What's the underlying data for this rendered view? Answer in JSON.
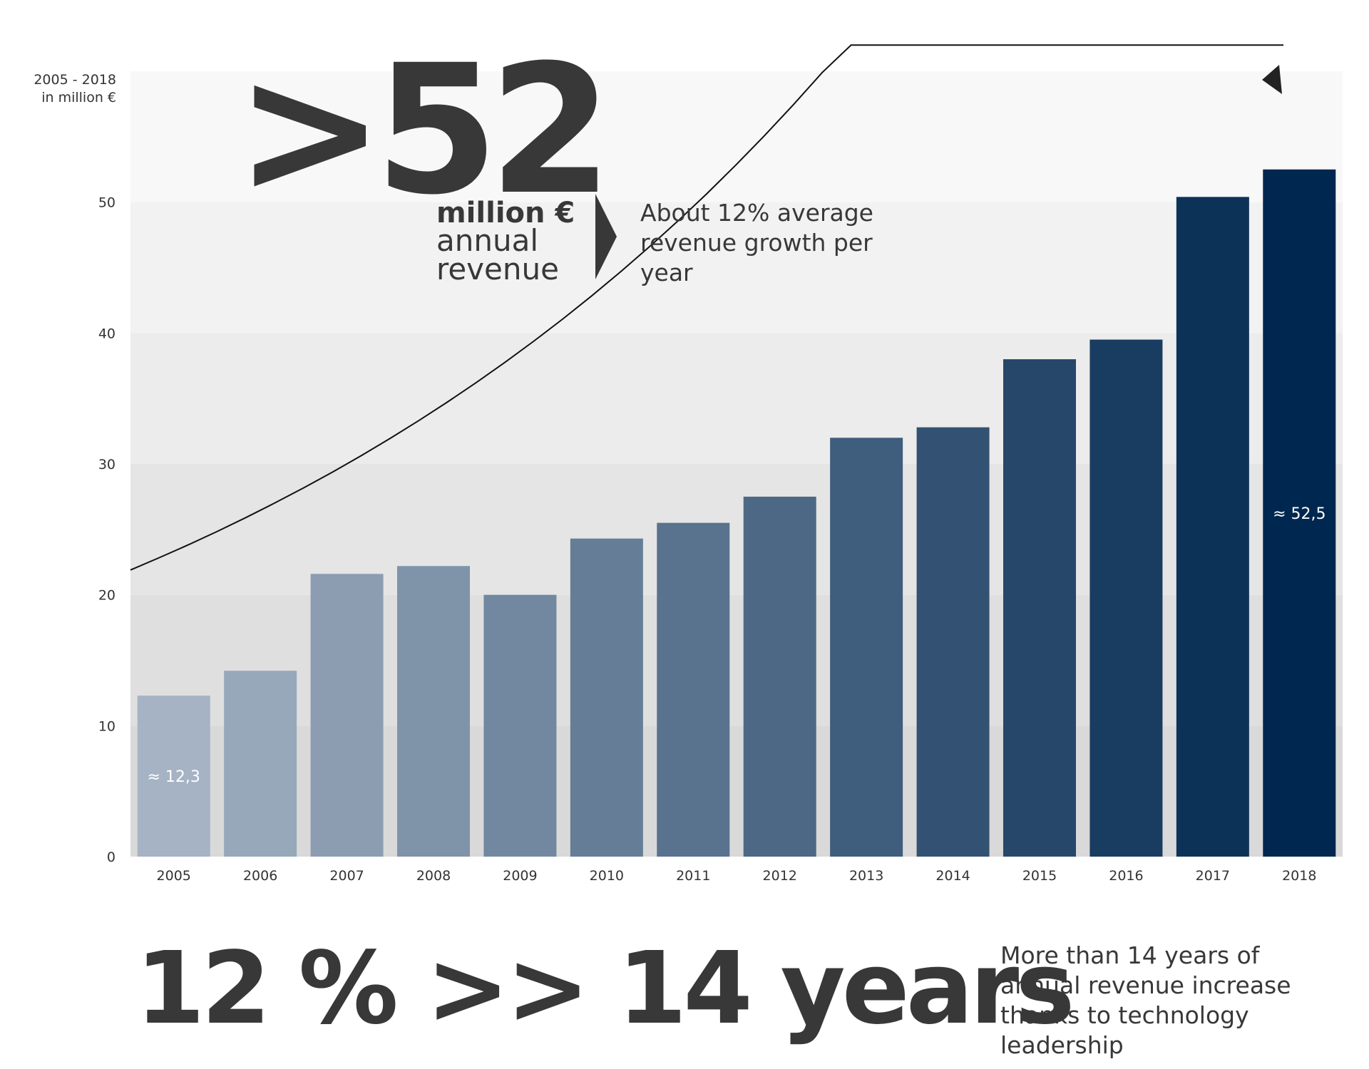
{
  "chart_data": {
    "type": "bar",
    "categories": [
      "2005",
      "2006",
      "2007",
      "2008",
      "2009",
      "2010",
      "2011",
      "2012",
      "2013",
      "2014",
      "2015",
      "2016",
      "2017",
      "2018"
    ],
    "values": [
      12.3,
      14.2,
      21.6,
      22.2,
      20.0,
      24.3,
      25.5,
      27.5,
      32.0,
      32.8,
      38.0,
      39.5,
      50.4,
      52.5
    ],
    "ylim": [
      0,
      60
    ],
    "yticks": [
      0,
      10,
      20,
      30,
      40,
      50
    ],
    "ylabel": "2005 - 2018 in million €",
    "ylabel_lines": [
      "2005 - 2018",
      "in million €"
    ],
    "data_labels": [
      {
        "index": 0,
        "text": "≈ 12,3"
      },
      {
        "index": 13,
        "text": "≈ 52,5"
      }
    ],
    "trend_arrow": true,
    "grid": "horizontal bands",
    "colors": {
      "bar_start": "#a5b3c4",
      "bar_end": "#00274f",
      "text": "#383838"
    }
  },
  "headline": {
    "big_number": ">52",
    "unit": "million €",
    "label": "annual revenue"
  },
  "growth_note": "About 12% average revenue growth per year",
  "bottom": {
    "headline": "12 % >> 14 years",
    "text": "More than 14 years of annual revenue increase thanks to technology leadership"
  }
}
